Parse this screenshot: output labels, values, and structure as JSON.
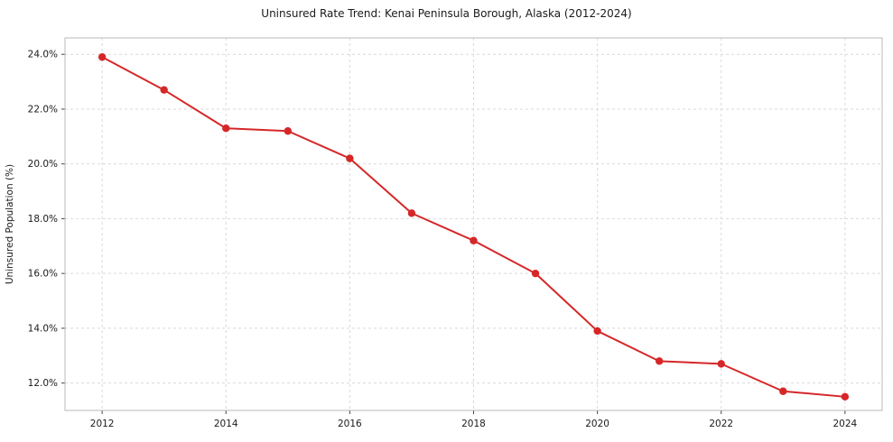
{
  "title": "Uninsured Rate Trend: Kenai Peninsula Borough, Alaska (2012-2024)",
  "chart_data": {
    "type": "line",
    "title": "Uninsured Rate Trend: Kenai Peninsula Borough, Alaska (2012-2024)",
    "xlabel": "",
    "ylabel": "Uninsured Population (%)",
    "x": [
      2012,
      2013,
      2014,
      2015,
      2016,
      2017,
      2018,
      2019,
      2020,
      2021,
      2022,
      2023,
      2024
    ],
    "values": [
      23.9,
      22.7,
      21.3,
      21.2,
      20.2,
      18.2,
      17.2,
      16.0,
      13.9,
      12.8,
      12.7,
      11.7,
      11.5
    ],
    "xticks": [
      2012,
      2014,
      2016,
      2018,
      2020,
      2022,
      2024
    ],
    "xtick_labels": [
      "2012",
      "2014",
      "2016",
      "2018",
      "2020",
      "2022",
      "2024"
    ],
    "yticks": [
      12,
      14,
      16,
      18,
      20,
      22,
      24
    ],
    "ytick_labels": [
      "12.0%",
      "14.0%",
      "16.0%",
      "18.0%",
      "20.0%",
      "22.0%",
      "24.0%"
    ],
    "xlim": [
      2011.4,
      2024.6
    ],
    "ylim": [
      11.0,
      24.6
    ],
    "grid": true,
    "grid_style": "dashed",
    "legend": "none",
    "line_color": "#d62728",
    "marker_color": "#d62728",
    "grid_color": "#d9d9d9",
    "frame_color": "#b8b8b8",
    "text_color": "#1a1a1a"
  }
}
